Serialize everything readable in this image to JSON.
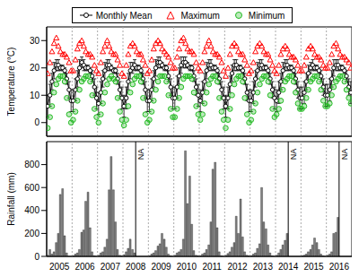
{
  "chart_data": [
    {
      "type": "line",
      "ylabel": "Temperature (°C)",
      "xlim": [
        2005,
        2017
      ],
      "ylim": [
        -5,
        35
      ],
      "yticks": [
        0,
        10,
        20,
        30
      ],
      "tick_labels": "y",
      "grid": true,
      "legend": "top",
      "x": [
        2005.04,
        2005.13,
        2005.21,
        2005.29,
        2005.38,
        2005.46,
        2005.54,
        2005.63,
        2005.71,
        2005.79,
        2005.88,
        2005.96,
        2006.04,
        2006.13,
        2006.21,
        2006.29,
        2006.38,
        2006.46,
        2006.54,
        2006.63,
        2006.71,
        2006.79,
        2006.88,
        2006.96,
        2007.04,
        2007.13,
        2007.21,
        2007.29,
        2007.38,
        2007.46,
        2007.54,
        2007.63,
        2007.71,
        2007.79,
        2007.88,
        2007.96,
        2008.04,
        2008.13,
        2008.21,
        2008.29,
        2008.38,
        2008.46,
        2008.54,
        2008.63,
        2008.71,
        2008.79,
        2008.88,
        2008.96,
        2009.04,
        2009.13,
        2009.21,
        2009.29,
        2009.38,
        2009.46,
        2009.54,
        2009.63,
        2009.71,
        2009.79,
        2009.88,
        2009.96,
        2010.04,
        2010.13,
        2010.21,
        2010.29,
        2010.38,
        2010.46,
        2010.54,
        2010.63,
        2010.71,
        2010.79,
        2010.88,
        2010.96,
        2011.04,
        2011.13,
        2011.21,
        2011.29,
        2011.38,
        2011.46,
        2011.54,
        2011.63,
        2011.71,
        2011.79,
        2011.88,
        2011.96,
        2012.04,
        2012.13,
        2012.21,
        2012.29,
        2012.38,
        2012.46,
        2012.54,
        2012.63,
        2012.71,
        2012.79,
        2012.88,
        2012.96,
        2013.04,
        2013.13,
        2013.21,
        2013.29,
        2013.38,
        2013.46,
        2013.54,
        2013.63,
        2013.71,
        2013.79,
        2013.88,
        2013.96,
        2014.04,
        2014.13,
        2014.21,
        2014.29,
        2014.38,
        2014.46,
        2014.54,
        2014.63,
        2014.71,
        2014.79,
        2014.88,
        2014.96,
        2015.04,
        2015.13,
        2015.21,
        2015.29,
        2015.38,
        2015.46,
        2015.54,
        2015.63,
        2015.71,
        2015.79,
        2015.88,
        2015.96,
        2016.04,
        2016.13,
        2016.21,
        2016.29,
        2016.38,
        2016.46,
        2016.54,
        2016.63,
        2016.71,
        2016.79,
        2016.88,
        2016.96
      ],
      "series": [
        {
          "name": "Monthly Mean",
          "type": "line",
          "color": "#000000",
          "marker": "circle",
          "values": [
            6,
            10,
            15,
            19,
            21,
            21,
            20,
            20,
            19,
            16,
            12,
            8,
            8,
            12,
            16,
            20,
            22,
            21,
            20,
            20,
            19,
            17,
            13,
            9,
            7,
            11,
            16,
            19,
            21,
            21,
            20,
            19,
            19,
            16,
            12,
            9,
            6,
            9,
            15,
            19,
            20,
            21,
            20,
            20,
            19,
            16,
            12,
            8,
            8,
            12,
            16,
            20,
            22,
            22,
            21,
            20,
            20,
            17,
            13,
            9,
            9,
            13,
            17,
            21,
            22,
            22,
            21,
            20,
            20,
            17,
            13,
            10,
            8,
            11,
            15,
            19,
            21,
            21,
            20,
            20,
            19,
            16,
            12,
            9,
            6,
            9,
            14,
            18,
            21,
            21,
            20,
            20,
            19,
            16,
            11,
            8,
            8,
            11,
            16,
            19,
            21,
            21,
            20,
            20,
            19,
            16,
            12,
            9,
            8,
            11,
            15,
            19,
            21,
            21,
            20,
            20,
            19,
            16,
            12,
            9,
            9,
            11,
            15,
            18,
            20,
            21,
            20,
            20,
            19,
            17,
            13,
            10,
            10,
            12,
            16,
            20,
            21,
            21,
            20,
            20,
            19,
            17,
            13,
            11
          ],
          "error": [
            4,
            4,
            3,
            3,
            2,
            2,
            1,
            1,
            1,
            2,
            3,
            4,
            4,
            4,
            3,
            3,
            2,
            2,
            1,
            1,
            1,
            2,
            3,
            4,
            4,
            4,
            3,
            3,
            2,
            2,
            1,
            1,
            1,
            2,
            3,
            4,
            4,
            4,
            3,
            3,
            2,
            2,
            1,
            1,
            1,
            2,
            3,
            4,
            4,
            4,
            3,
            3,
            2,
            2,
            1,
            1,
            1,
            2,
            3,
            4,
            4,
            4,
            3,
            3,
            2,
            2,
            1,
            1,
            1,
            2,
            3,
            4,
            4,
            4,
            3,
            3,
            2,
            2,
            1,
            1,
            1,
            2,
            3,
            4,
            4,
            4,
            3,
            3,
            2,
            2,
            1,
            1,
            1,
            2,
            3,
            4,
            4,
            4,
            3,
            3,
            2,
            2,
            1,
            1,
            1,
            2,
            3,
            4,
            4,
            4,
            3,
            3,
            2,
            2,
            1,
            1,
            1,
            2,
            3,
            4,
            4,
            4,
            3,
            3,
            2,
            2,
            1,
            1,
            1,
            2,
            3,
            4,
            4,
            4,
            3,
            3,
            2,
            2,
            1,
            1,
            1,
            2,
            3,
            4
          ]
        },
        {
          "name": "Maximum",
          "type": "scatter",
          "color": "#ff0000",
          "marker": "triangle",
          "values": [
            18,
            22,
            26,
            29,
            31,
            28,
            26,
            25,
            25,
            24,
            22,
            19,
            19,
            23,
            27,
            29,
            30,
            28,
            26,
            25,
            25,
            24,
            21,
            19,
            18,
            22,
            26,
            28,
            30,
            28,
            26,
            25,
            25,
            23,
            21,
            18,
            17,
            21,
            25,
            28,
            29,
            28,
            26,
            25,
            25,
            23,
            21,
            18,
            19,
            23,
            27,
            29,
            30,
            29,
            27,
            26,
            25,
            24,
            22,
            20,
            20,
            24,
            27,
            30,
            31,
            29,
            27,
            26,
            26,
            25,
            22,
            20,
            19,
            22,
            26,
            28,
            30,
            28,
            26,
            25,
            25,
            24,
            22,
            19,
            17,
            20,
            25,
            28,
            29,
            28,
            26,
            25,
            25,
            23,
            21,
            18,
            19,
            22,
            26,
            28,
            29,
            28,
            26,
            25,
            25,
            23,
            21,
            19,
            18,
            21,
            25,
            27,
            28,
            27,
            25,
            24,
            24,
            23,
            21,
            19,
            19,
            21,
            24,
            27,
            28,
            27,
            25,
            24,
            24,
            23,
            21,
            20,
            20,
            22,
            25,
            28,
            29,
            27,
            25,
            24,
            24,
            23,
            22,
            20
          ]
        },
        {
          "name": "Minimum",
          "type": "scatter",
          "color": "#22bb22",
          "marker": "circle",
          "values": [
            -2,
            2,
            6,
            11,
            14,
            16,
            17,
            17,
            15,
            9,
            3,
            0,
            1,
            4,
            8,
            12,
            15,
            16,
            17,
            17,
            15,
            10,
            5,
            2,
            0,
            3,
            7,
            11,
            14,
            16,
            17,
            16,
            15,
            9,
            4,
            1,
            -1,
            1,
            6,
            11,
            14,
            16,
            17,
            17,
            15,
            9,
            3,
            0,
            1,
            4,
            8,
            12,
            15,
            17,
            17,
            17,
            15,
            10,
            5,
            2,
            2,
            5,
            9,
            13,
            16,
            17,
            17,
            17,
            16,
            11,
            6,
            3,
            1,
            3,
            7,
            11,
            14,
            16,
            17,
            17,
            15,
            9,
            4,
            1,
            -2,
            1,
            5,
            10,
            14,
            16,
            17,
            17,
            15,
            9,
            3,
            0,
            1,
            4,
            7,
            11,
            14,
            16,
            17,
            17,
            15,
            10,
            5,
            2,
            3,
            5,
            8,
            12,
            15,
            16,
            17,
            17,
            15,
            11,
            7,
            5,
            5,
            6,
            9,
            12,
            15,
            16,
            17,
            17,
            15,
            12,
            8,
            6,
            6,
            7,
            10,
            13,
            15,
            16,
            17,
            17,
            15,
            12,
            9,
            7
          ]
        }
      ]
    },
    {
      "type": "bar",
      "ylabel": "Rainfall (mm)",
      "xlim": [
        2005,
        2017
      ],
      "ylim": [
        0,
        1000
      ],
      "yticks": [
        0,
        200,
        400,
        600,
        800
      ],
      "grid": true,
      "color": "#808080",
      "xticks": [
        {
          "value": 2005.5,
          "label": "2005"
        },
        {
          "value": 2006.5,
          "label": "2006"
        },
        {
          "value": 2007.5,
          "label": "2007"
        },
        {
          "value": 2008.5,
          "label": "2008"
        },
        {
          "value": 2009.5,
          "label": "2009"
        },
        {
          "value": 2010.5,
          "label": "2010"
        },
        {
          "value": 2011.5,
          "label": "2011"
        },
        {
          "value": 2012.5,
          "label": "2012"
        },
        {
          "value": 2013.5,
          "label": "2013"
        },
        {
          "value": 2014.5,
          "label": "2014"
        },
        {
          "value": 2015.5,
          "label": "2015"
        },
        {
          "value": 2016.5,
          "label": "2016"
        }
      ],
      "x": [
        2005.04,
        2005.13,
        2005.21,
        2005.29,
        2005.38,
        2005.46,
        2005.54,
        2005.63,
        2005.71,
        2005.79,
        2005.88,
        2005.96,
        2006.04,
        2006.13,
        2006.21,
        2006.29,
        2006.38,
        2006.46,
        2006.54,
        2006.63,
        2006.71,
        2006.79,
        2006.88,
        2006.96,
        2007.04,
        2007.13,
        2007.21,
        2007.29,
        2007.38,
        2007.46,
        2007.54,
        2007.63,
        2007.71,
        2007.79,
        2007.88,
        2007.96,
        2008.04,
        2008.13,
        2008.21,
        2008.29,
        2008.38,
        2008.46,
        2008.54,
        2008.63,
        2008.71,
        2008.79,
        2008.88,
        2008.96,
        2009.04,
        2009.13,
        2009.21,
        2009.29,
        2009.38,
        2009.46,
        2009.54,
        2009.63,
        2009.71,
        2009.79,
        2009.88,
        2009.96,
        2010.04,
        2010.13,
        2010.21,
        2010.29,
        2010.38,
        2010.46,
        2010.54,
        2010.63,
        2010.71,
        2010.79,
        2010.88,
        2010.96,
        2011.04,
        2011.13,
        2011.21,
        2011.29,
        2011.38,
        2011.46,
        2011.54,
        2011.63,
        2011.71,
        2011.79,
        2011.88,
        2011.96,
        2012.04,
        2012.13,
        2012.21,
        2012.29,
        2012.38,
        2012.46,
        2012.54,
        2012.63,
        2012.71,
        2012.79,
        2012.88,
        2012.96,
        2013.04,
        2013.13,
        2013.21,
        2013.29,
        2013.38,
        2013.46,
        2013.54,
        2013.63,
        2013.71,
        2013.79,
        2013.88,
        2013.96,
        2014.04,
        2014.13,
        2014.21,
        2014.29,
        2014.38,
        2014.46,
        2014.54,
        2014.63,
        2014.71,
        2014.79,
        2014.88,
        2014.96,
        2015.04,
        2015.13,
        2015.21,
        2015.29,
        2015.38,
        2015.46,
        2015.54,
        2015.63,
        2015.71,
        2015.79,
        2015.88,
        2015.96,
        2016.04,
        2016.13,
        2016.21,
        2016.29,
        2016.38,
        2016.46,
        2016.54,
        2016.63,
        2016.71,
        2016.79,
        2016.88,
        2016.96
      ],
      "values": [
        10,
        60,
        20,
        40,
        120,
        200,
        540,
        590,
        180,
        30,
        0,
        0,
        5,
        20,
        30,
        60,
        210,
        230,
        480,
        560,
        250,
        40,
        5,
        0,
        10,
        30,
        40,
        80,
        150,
        580,
        870,
        580,
        300,
        60,
        10,
        5,
        15,
        40,
        70,
        150,
        60,
        30,
        null,
        null,
        null,
        null,
        null,
        null,
        5,
        20,
        30,
        50,
        90,
        110,
        200,
        150,
        80,
        20,
        5,
        0,
        10,
        30,
        40,
        60,
        150,
        920,
        460,
        700,
        280,
        50,
        10,
        5,
        5,
        20,
        30,
        60,
        100,
        300,
        760,
        820,
        250,
        40,
        5,
        0,
        10,
        25,
        40,
        80,
        120,
        350,
        200,
        500,
        170,
        40,
        10,
        5,
        5,
        20,
        30,
        70,
        110,
        600,
        300,
        240,
        100,
        30,
        5,
        0,
        10,
        30,
        60,
        100,
        140,
        200,
        null,
        null,
        null,
        null,
        null,
        null,
        5,
        10,
        20,
        40,
        60,
        100,
        160,
        120,
        60,
        20,
        5,
        0,
        10,
        20,
        40,
        200,
        210,
        340,
        null,
        null,
        null,
        null,
        null,
        null
      ],
      "annotations": [
        {
          "x": 2008.5,
          "text": "NA"
        },
        {
          "x": 2014.5,
          "text": "NA"
        },
        {
          "x": 2016.5,
          "text": "NA"
        }
      ]
    }
  ]
}
